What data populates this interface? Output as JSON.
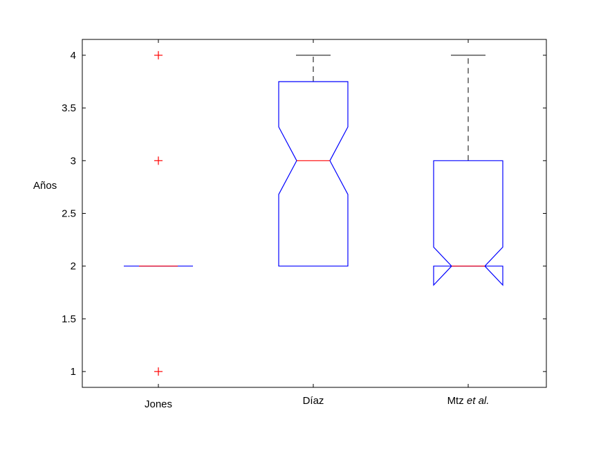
{
  "chart_data": {
    "type": "boxplot",
    "title": "",
    "xlabel": "",
    "ylabel": "Años",
    "ylim": [
      0.85,
      4.15
    ],
    "yticks": [
      "1",
      "1.5",
      "2",
      "2.5",
      "3",
      "3.5",
      "4"
    ],
    "grid": false,
    "notched": true,
    "colors": {
      "box": "#0000ff",
      "median": "#ff0000",
      "whisker": "#000000",
      "outlier": "#ff0000"
    },
    "categories": [
      {
        "label": "Jones",
        "label_suffix": ""
      },
      {
        "label": "Díaz",
        "label_suffix": ""
      },
      {
        "label": "Mtz ",
        "label_suffix": "et al."
      }
    ],
    "series": [
      {
        "q1": 2,
        "median": 2,
        "q3": 2,
        "whisker_low": 2,
        "whisker_high": 2,
        "notch_low": 2,
        "notch_high": 2,
        "outliers": [
          1,
          3,
          4
        ]
      },
      {
        "q1": 2,
        "median": 3,
        "q3": 3.75,
        "whisker_low": 2,
        "whisker_high": 4,
        "notch_low": 2.68,
        "notch_high": 3.32,
        "outliers": []
      },
      {
        "q1": 2,
        "median": 2,
        "q3": 3,
        "whisker_low": 2,
        "whisker_high": 4,
        "notch_low": 1.82,
        "notch_high": 2.18,
        "outliers": []
      }
    ]
  }
}
